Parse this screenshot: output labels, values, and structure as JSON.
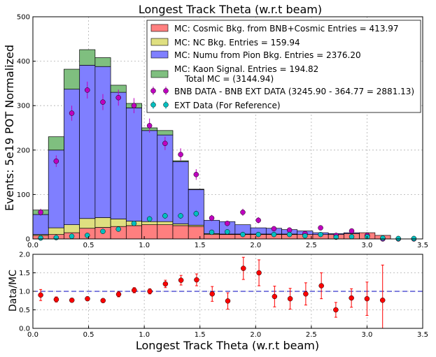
{
  "chart_data": [
    {
      "type": "bar",
      "stacked": true,
      "title": "Longest Track Theta (w.r.t beam)",
      "xlabel": "",
      "ylabel": "Events: 5e19 POT Normalized",
      "xlim": [
        0,
        3.5
      ],
      "ylim": [
        0,
        500
      ],
      "xticks": [
        "0.0",
        "0.5",
        "1.0",
        "1.5",
        "2.0",
        "2.5",
        "3.0",
        "3.5"
      ],
      "yticks": [
        "0",
        "100",
        "200",
        "300",
        "400",
        "500"
      ],
      "grid": true,
      "legend_position": "top-right",
      "bin_edges": [
        0.0,
        0.1396,
        0.2793,
        0.4189,
        0.5585,
        0.6981,
        0.8378,
        0.9774,
        1.117,
        1.2566,
        1.3963,
        1.5359,
        1.6755,
        1.8151,
        1.9548,
        2.0944,
        2.234,
        2.3736,
        2.5133,
        2.6529,
        2.7925,
        2.9322,
        3.0718,
        3.2114,
        3.351,
        3.4907
      ],
      "series": [
        {
          "name": "MC: Cosmic Bkg. from BNB+Cosmic Entries = 413.97",
          "color": "#ff7f7f",
          "values": [
            8,
            10,
            14,
            24,
            26,
            28,
            30,
            32,
            32,
            30,
            28,
            10,
            10,
            10,
            10,
            10,
            10,
            10,
            10,
            10,
            12,
            14,
            8,
            0,
            0
          ]
        },
        {
          "name": "MC: NC Bkg. Entries = 159.94",
          "color": "#dfdf80",
          "values": [
            2,
            15,
            18,
            22,
            22,
            17,
            10,
            7,
            7,
            4,
            3,
            2,
            1,
            1,
            1,
            1,
            1,
            0,
            0,
            0,
            0,
            0,
            0,
            0,
            0
          ]
        },
        {
          "name": "MC: Numu from Pion Bkg. Entries = 2376.20",
          "color": "#7f7fff",
          "values": [
            45,
            175,
            305,
            345,
            340,
            285,
            255,
            205,
            195,
            140,
            80,
            30,
            28,
            21,
            14,
            13,
            10,
            8,
            4,
            2,
            2,
            0,
            0,
            0,
            0
          ]
        },
        {
          "name": "MC: Kaon Signal. Entries = 194.82\n    Total MC = (3144.94)",
          "color": "#7fbf7f",
          "values": [
            10,
            30,
            45,
            35,
            20,
            16,
            10,
            6,
            10,
            2,
            1,
            0,
            0,
            0,
            0,
            0,
            0,
            0,
            0,
            0,
            0,
            0,
            0,
            0,
            0
          ]
        }
      ],
      "data_series": [
        {
          "name": "BNB DATA - BNB EXT DATA (3245.90 - 364.77 = 2881.13)",
          "color": "#bf00bf",
          "y": [
            60,
            175,
            283,
            335,
            308,
            318,
            300,
            255,
            215,
            190,
            145,
            47,
            35,
            60,
            42,
            23,
            20,
            12,
            25,
            8,
            18,
            8,
            0,
            0,
            0
          ],
          "yerr": [
            8,
            13,
            17,
            19,
            18,
            18,
            17,
            16,
            15,
            14,
            12,
            7,
            6,
            8,
            7,
            5,
            5,
            4,
            5,
            3,
            4,
            3,
            0,
            0,
            0
          ]
        },
        {
          "name": "EXT Data (For Reference)",
          "color": "#00bfbf",
          "y": [
            2,
            3,
            6,
            8,
            17,
            22,
            35,
            45,
            52,
            52,
            57,
            15,
            16,
            10,
            10,
            10,
            10,
            7,
            10,
            4,
            5,
            5,
            2,
            1,
            1
          ],
          "yerr": [
            1,
            2,
            2,
            3,
            4,
            5,
            6,
            7,
            7,
            7,
            8,
            4,
            4,
            3,
            3,
            3,
            3,
            3,
            3,
            2,
            2,
            2,
            1,
            1,
            1
          ]
        }
      ],
      "legend_entries": [
        "MC: Cosmic Bkg. from BNB+Cosmic Entries = 413.97",
        "MC: NC Bkg. Entries = 159.94",
        "MC: Numu from Pion Bkg. Entries = 2376.20",
        "MC: Kaon Signal. Entries = 194.82",
        "Total MC = (3144.94)",
        "BNB DATA - BNB EXT DATA (3245.90 - 364.77 = 2881.13)",
        "EXT Data (For Reference)"
      ]
    },
    {
      "type": "scatter",
      "title": "",
      "xlabel": "Longest Track Theta (w.r.t beam)",
      "ylabel": "Data/MC",
      "xlim": [
        0,
        3.5
      ],
      "ylim": [
        0,
        2.0
      ],
      "xticks": [
        "0.0",
        "0.5",
        "1.0",
        "1.5",
        "2.0",
        "2.5",
        "3.0",
        "3.5"
      ],
      "yticks": [
        "0.0",
        "0.5",
        "1.0",
        "1.5",
        "2.0"
      ],
      "grid": true,
      "reference_line": 1.0,
      "color": "#ff0000",
      "x": [
        0.07,
        0.21,
        0.35,
        0.49,
        0.63,
        0.77,
        0.91,
        1.05,
        1.19,
        1.33,
        1.47,
        1.61,
        1.75,
        1.89,
        2.03,
        2.17,
        2.31,
        2.45,
        2.59,
        2.72,
        2.86,
        3.0,
        3.14
      ],
      "y": [
        0.9,
        0.78,
        0.76,
        0.8,
        0.75,
        0.92,
        1.03,
        1.0,
        1.2,
        1.3,
        1.31,
        0.93,
        0.74,
        1.62,
        1.5,
        0.86,
        0.8,
        0.93,
        1.15,
        0.5,
        0.82,
        0.8,
        0.76
      ],
      "yerr": [
        0.15,
        0.07,
        0.05,
        0.05,
        0.05,
        0.07,
        0.07,
        0.07,
        0.1,
        0.13,
        0.16,
        0.2,
        0.22,
        0.3,
        0.35,
        0.28,
        0.28,
        0.3,
        0.35,
        0.2,
        0.25,
        0.45,
        0.95
      ]
    }
  ]
}
